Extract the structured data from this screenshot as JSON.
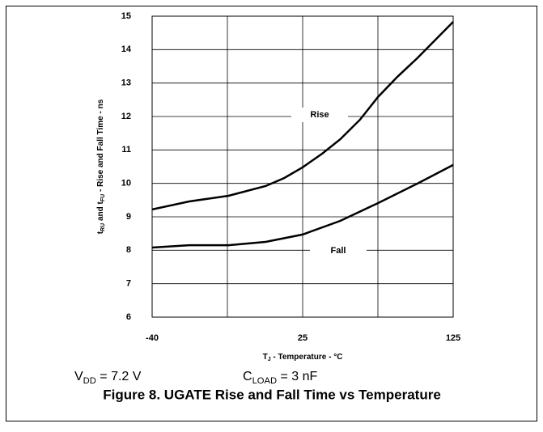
{
  "chart_data": {
    "type": "line",
    "caption": "Figure 8. UGATE Rise and Fall Time vs Temperature",
    "xlabel": {
      "main": "T",
      "sub": "J",
      "rest": " - Temperature - °C"
    },
    "ylabel": [
      {
        "main": "t",
        "sub": "RU"
      },
      {
        "main": " and t",
        "sub": "FU"
      },
      {
        "main": " - Rise and Fall Time - ns",
        "sub": null
      }
    ],
    "conditions": [
      {
        "main": "V",
        "sub": "DD",
        "rest": " = 7.2 V"
      },
      {
        "main": "C",
        "sub": "LOAD",
        "rest": " = 3 nF"
      }
    ],
    "annotations": [
      "Rise",
      "Fall"
    ],
    "xlim": [
      -40,
      125
    ],
    "xticks": [
      -40,
      25,
      125
    ],
    "ylim": [
      6,
      15
    ],
    "yticks": [
      6,
      7,
      8,
      9,
      10,
      11,
      12,
      13,
      14,
      15
    ],
    "grid": true,
    "series": [
      {
        "name": "Rise",
        "color": "#000000",
        "x": [
          -40,
          -24,
          -7,
          9,
          17,
          25,
          38,
          50,
          63,
          75,
          88,
          101,
          125
        ],
        "values": [
          9.22,
          9.46,
          9.63,
          9.92,
          10.16,
          10.48,
          10.89,
          11.32,
          11.9,
          12.58,
          13.19,
          13.74,
          14.83
        ]
      },
      {
        "name": "Fall",
        "color": "#000000",
        "x": [
          -40,
          -24,
          -7,
          9,
          25,
          50,
          75,
          101,
          125
        ],
        "values": [
          8.08,
          8.15,
          8.15,
          8.25,
          8.47,
          8.88,
          9.41,
          9.99,
          10.55
        ]
      }
    ]
  }
}
